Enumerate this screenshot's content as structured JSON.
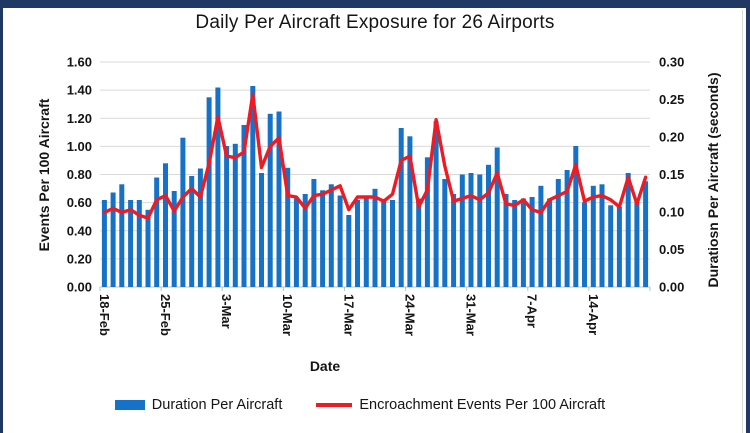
{
  "figure": {
    "background": "#FFFFFF",
    "border_color": "#1F3864"
  },
  "chart_data": {
    "type": "bar",
    "subtype": "combo bar+line, dual axis",
    "title": "Daily Per Aircraft Exposure for 26 Airports",
    "xlabel": "Date",
    "ylabel_left": "Events Per 100 Aircraft",
    "ylabel_right": "Duratiosn Per Aircraft (seconds)",
    "ylim_left": [
      0,
      1.6
    ],
    "ylim_right": [
      0,
      0.3
    ],
    "grid": true,
    "legend_position": "bottom",
    "left_ticks": [
      "0.00",
      "0.20",
      "0.40",
      "0.60",
      "0.80",
      "1.00",
      "1.20",
      "1.40",
      "1.60"
    ],
    "right_ticks": [
      "0.00",
      "0.05",
      "0.10",
      "0.15",
      "0.20",
      "0.25",
      "0.30"
    ],
    "x_tick_labels": [
      "18-Feb",
      "25-Feb",
      "3-Mar",
      "10-Mar",
      "17-Mar",
      "24-Mar",
      "31-Mar",
      "7-Apr",
      "14-Apr"
    ],
    "colors": {
      "bar": "#1572C6",
      "line": "#ED1C24",
      "grid": "#D9D9D9",
      "axis": "#BFBFBF",
      "text": "#151515",
      "border": "#1F3864"
    },
    "x": [
      "18-Feb",
      "19-Feb",
      "20-Feb",
      "21-Feb",
      "22-Feb",
      "23-Feb",
      "24-Feb",
      "25-Feb",
      "26-Feb",
      "27-Feb",
      "28-Feb",
      "1-Mar",
      "2-Mar",
      "3-Mar",
      "4-Mar",
      "5-Mar",
      "6-Mar",
      "7-Mar",
      "8-Mar",
      "9-Mar",
      "10-Mar",
      "11-Mar",
      "12-Mar",
      "13-Mar",
      "14-Mar",
      "15-Mar",
      "16-Mar",
      "17-Mar",
      "18-Mar",
      "19-Mar",
      "20-Mar",
      "21-Mar",
      "22-Mar",
      "23-Mar",
      "24-Mar",
      "25-Mar",
      "26-Mar",
      "27-Mar",
      "28-Mar",
      "29-Mar",
      "30-Mar",
      "31-Mar",
      "1-Apr",
      "2-Apr",
      "3-Apr",
      "4-Apr",
      "5-Apr",
      "6-Apr",
      "7-Apr",
      "8-Apr",
      "9-Apr",
      "10-Apr",
      "11-Apr",
      "12-Apr",
      "13-Apr",
      "14-Apr",
      "15-Apr",
      "16-Apr",
      "17-Apr",
      "18-Apr",
      "19-Apr",
      "20-Apr",
      "21-Apr"
    ],
    "series": [
      {
        "name": "Duration Per Aircraft",
        "type": "bar",
        "axis": "right",
        "unit": "seconds",
        "color": "#1572C6",
        "values": [
          0.116,
          0.126,
          0.137,
          0.116,
          0.116,
          0.103,
          0.146,
          0.165,
          0.128,
          0.199,
          0.148,
          0.158,
          0.253,
          0.266,
          0.188,
          0.191,
          0.216,
          0.268,
          0.152,
          0.231,
          0.234,
          0.159,
          0.118,
          0.124,
          0.144,
          0.129,
          0.137,
          0.122,
          0.096,
          0.116,
          0.12,
          0.131,
          0.114,
          0.116,
          0.212,
          0.201,
          0.118,
          0.173,
          0.221,
          0.144,
          0.124,
          0.15,
          0.152,
          0.15,
          0.163,
          0.186,
          0.124,
          0.116,
          0.118,
          0.12,
          0.135,
          0.118,
          0.144,
          0.156,
          0.188,
          0.113,
          0.135,
          0.137,
          0.109,
          0.107,
          0.152,
          0.114,
          0.141
        ]
      },
      {
        "name": "Encroachment Events Per 100 Aircraft",
        "type": "line",
        "axis": "left",
        "unit": "events per 100 aircraft",
        "color": "#ED1C24",
        "values": [
          0.53,
          0.56,
          0.53,
          0.55,
          0.51,
          0.49,
          0.62,
          0.65,
          0.54,
          0.64,
          0.7,
          0.64,
          0.88,
          1.21,
          0.93,
          0.92,
          0.96,
          1.37,
          0.85,
          1.0,
          1.06,
          0.65,
          0.64,
          0.56,
          0.65,
          0.66,
          0.69,
          0.72,
          0.55,
          0.64,
          0.64,
          0.64,
          0.61,
          0.66,
          0.9,
          0.93,
          0.57,
          0.69,
          1.19,
          0.86,
          0.61,
          0.63,
          0.65,
          0.62,
          0.67,
          0.81,
          0.59,
          0.58,
          0.62,
          0.55,
          0.53,
          0.62,
          0.65,
          0.68,
          0.87,
          0.61,
          0.64,
          0.65,
          0.62,
          0.57,
          0.78,
          0.59,
          0.78
        ]
      }
    ]
  }
}
